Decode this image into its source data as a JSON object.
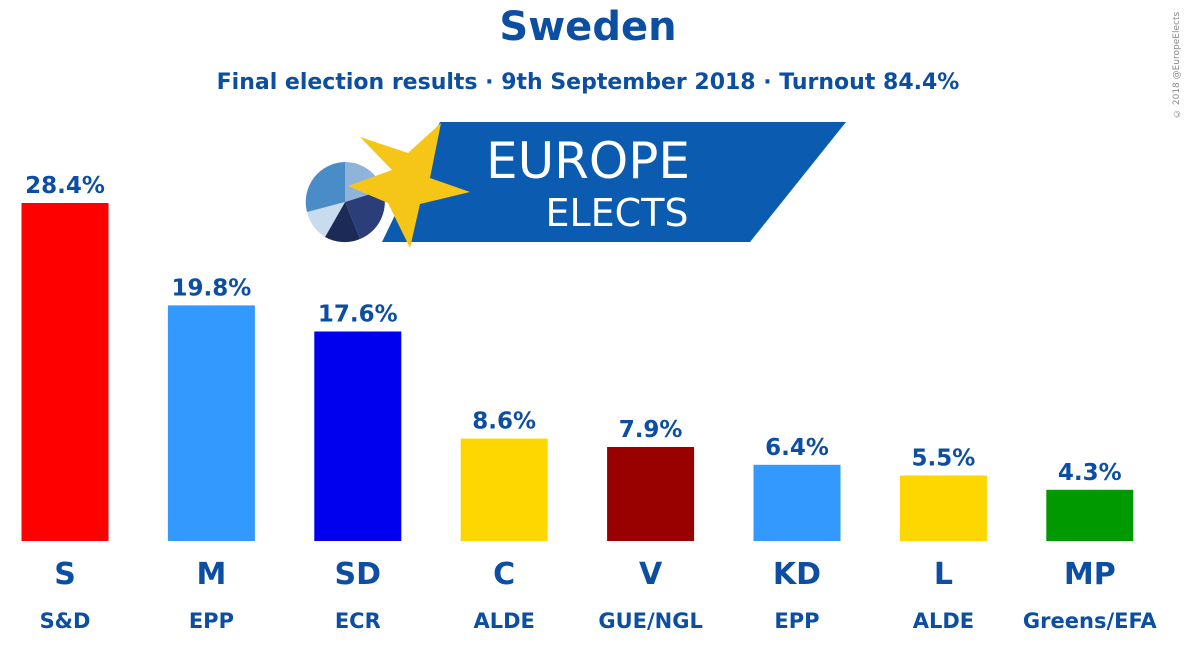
{
  "chart_data": {
    "type": "bar",
    "title": "Sweden",
    "subtitle": "Final election results · 9th September 2018 · Turnout 84.4%",
    "xlabel": "",
    "ylabel": "",
    "ylim": [
      0,
      30
    ],
    "grid": false,
    "categories": [
      "S",
      "M",
      "SD",
      "C",
      "V",
      "KD",
      "L",
      "MP"
    ],
    "groups": [
      "S&D",
      "EPP",
      "ECR",
      "ALDE",
      "GUE/NGL",
      "EPP",
      "ALDE",
      "Greens/EFA"
    ],
    "values": [
      28.4,
      19.8,
      17.6,
      8.6,
      7.9,
      6.4,
      5.5,
      4.3
    ],
    "value_labels": [
      "28.4%",
      "19.8%",
      "17.6%",
      "8.6%",
      "7.9%",
      "6.4%",
      "5.5%",
      "4.3%"
    ],
    "colors": [
      "#ff0000",
      "#3399ff",
      "#0000ee",
      "#ffd700",
      "#990000",
      "#3399ff",
      "#ffd700",
      "#009900"
    ]
  },
  "logo": {
    "line1": "EUROPE",
    "line2": "ELECTS",
    "banner_color": "#0b5cb0",
    "star_color": "#f5c518"
  },
  "copyright": "© 2018 @EuropeElects"
}
